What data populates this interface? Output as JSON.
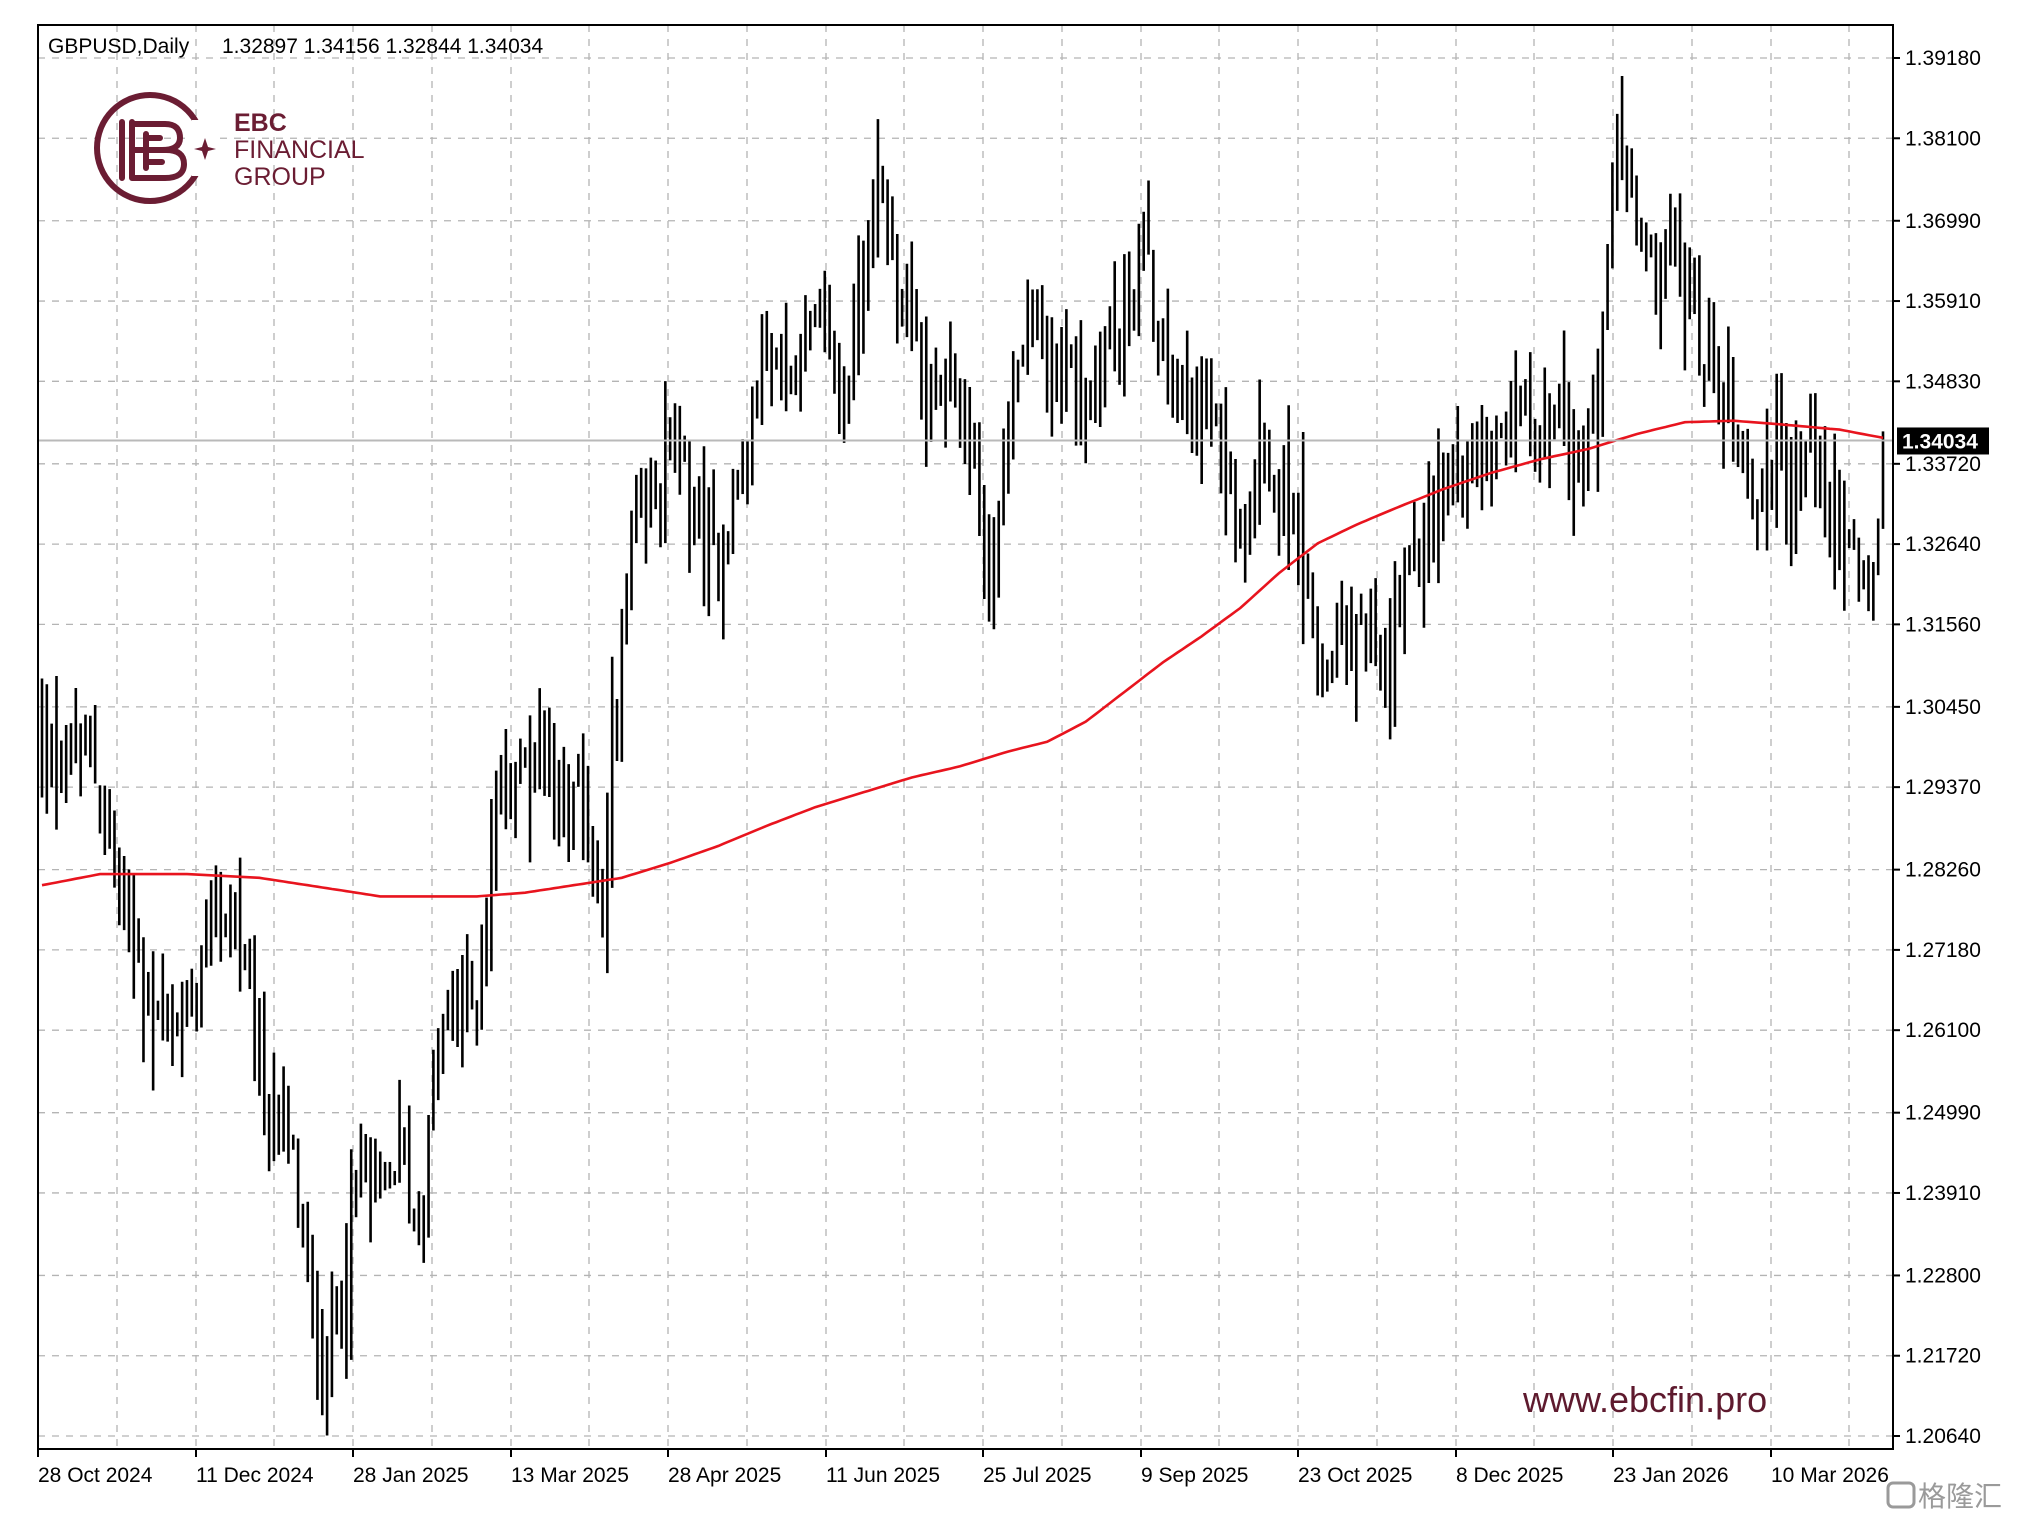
{
  "header": {
    "symbol": "GBPUSD,Daily",
    "ohlc": "1.32897 1.34156 1.32844 1.34034"
  },
  "branding": {
    "logo_line1": "EBC",
    "logo_line2": "FINANCIAL",
    "logo_line3": "GROUP",
    "website": "www.ebcfin.pro",
    "watermark": "格隆汇"
  },
  "colors": {
    "bars": "#000000",
    "moving_average": "#e8141e",
    "price_line": "#b9b9b9",
    "price_tag_bg": "#000000",
    "price_tag_text": "#ffffff",
    "grid": "#b4b4b4",
    "logo": "#6b1d33"
  },
  "chart_data": {
    "type": "ohlc-bar",
    "grid": true,
    "y_ticks": [
      "1.39180",
      "1.38100",
      "1.36990",
      "1.35910",
      "1.34830",
      "1.33720",
      "1.32640",
      "1.31560",
      "1.30450",
      "1.29370",
      "1.28260",
      "1.27180",
      "1.26100",
      "1.24990",
      "1.23910",
      "1.22800",
      "1.21720",
      "1.20640"
    ],
    "ylim": [
      1.2064,
      1.3918
    ],
    "x_ticks": [
      "28 Oct 2024",
      "11 Dec 2024",
      "28 Jan 2025",
      "13 Mar 2025",
      "28 Apr 2025",
      "11 Jun 2025",
      "25 Jul 2025",
      "9 Sep 2025",
      "23 Oct 2025",
      "8 Dec 2025",
      "23 Jan 2026",
      "10 Mar 2026"
    ],
    "current_price": "1.34034",
    "last_bar": {
      "open": 1.32897,
      "high": 1.34156,
      "low": 1.32844,
      "close": 1.34034
    },
    "close_path": [
      {
        "bar": 0,
        "close": 1.2985
      },
      {
        "bar": 10,
        "close": 1.2985
      },
      {
        "bar": 15,
        "close": 1.282
      },
      {
        "bar": 22,
        "close": 1.265
      },
      {
        "bar": 30,
        "close": 1.262
      },
      {
        "bar": 36,
        "close": 1.277
      },
      {
        "bar": 40,
        "close": 1.276
      },
      {
        "bar": 46,
        "close": 1.253
      },
      {
        "bar": 52,
        "close": 1.244
      },
      {
        "bar": 56,
        "close": 1.22
      },
      {
        "bar": 58,
        "close": 1.215
      },
      {
        "bar": 62,
        "close": 1.225
      },
      {
        "bar": 66,
        "close": 1.242
      },
      {
        "bar": 70,
        "close": 1.238
      },
      {
        "bar": 74,
        "close": 1.245
      },
      {
        "bar": 78,
        "close": 1.234
      },
      {
        "bar": 82,
        "close": 1.259
      },
      {
        "bar": 86,
        "close": 1.264
      },
      {
        "bar": 90,
        "close": 1.265
      },
      {
        "bar": 94,
        "close": 1.293
      },
      {
        "bar": 100,
        "close": 1.296
      },
      {
        "bar": 104,
        "close": 1.299
      },
      {
        "bar": 108,
        "close": 1.292
      },
      {
        "bar": 112,
        "close": 1.294
      },
      {
        "bar": 116,
        "close": 1.275
      },
      {
        "bar": 118,
        "close": 1.3
      },
      {
        "bar": 122,
        "close": 1.326
      },
      {
        "bar": 126,
        "close": 1.333
      },
      {
        "bar": 130,
        "close": 1.339
      },
      {
        "bar": 134,
        "close": 1.333
      },
      {
        "bar": 138,
        "close": 1.323
      },
      {
        "bar": 142,
        "close": 1.33
      },
      {
        "bar": 146,
        "close": 1.34
      },
      {
        "bar": 150,
        "close": 1.354
      },
      {
        "bar": 154,
        "close": 1.349
      },
      {
        "bar": 158,
        "close": 1.355
      },
      {
        "bar": 162,
        "close": 1.356
      },
      {
        "bar": 166,
        "close": 1.345
      },
      {
        "bar": 170,
        "close": 1.364
      },
      {
        "bar": 173,
        "close": 1.375
      },
      {
        "bar": 176,
        "close": 1.366
      },
      {
        "bar": 180,
        "close": 1.355
      },
      {
        "bar": 184,
        "close": 1.345
      },
      {
        "bar": 188,
        "close": 1.348
      },
      {
        "bar": 192,
        "close": 1.34
      },
      {
        "bar": 196,
        "close": 1.32
      },
      {
        "bar": 200,
        "close": 1.342
      },
      {
        "bar": 204,
        "close": 1.356
      },
      {
        "bar": 208,
        "close": 1.349
      },
      {
        "bar": 212,
        "close": 1.35
      },
      {
        "bar": 216,
        "close": 1.345
      },
      {
        "bar": 220,
        "close": 1.354
      },
      {
        "bar": 224,
        "close": 1.355
      },
      {
        "bar": 228,
        "close": 1.367
      },
      {
        "bar": 232,
        "close": 1.35
      },
      {
        "bar": 236,
        "close": 1.344
      },
      {
        "bar": 240,
        "close": 1.348
      },
      {
        "bar": 244,
        "close": 1.338
      },
      {
        "bar": 248,
        "close": 1.331
      },
      {
        "bar": 252,
        "close": 1.341
      },
      {
        "bar": 256,
        "close": 1.335
      },
      {
        "bar": 260,
        "close": 1.327
      },
      {
        "bar": 263,
        "close": 1.314
      },
      {
        "bar": 266,
        "close": 1.31
      },
      {
        "bar": 270,
        "close": 1.316
      },
      {
        "bar": 274,
        "close": 1.315
      },
      {
        "bar": 278,
        "close": 1.307
      },
      {
        "bar": 282,
        "close": 1.322
      },
      {
        "bar": 286,
        "close": 1.326
      },
      {
        "bar": 290,
        "close": 1.334
      },
      {
        "bar": 294,
        "close": 1.335
      },
      {
        "bar": 298,
        "close": 1.338
      },
      {
        "bar": 302,
        "close": 1.344
      },
      {
        "bar": 306,
        "close": 1.347
      },
      {
        "bar": 310,
        "close": 1.342
      },
      {
        "bar": 314,
        "close": 1.344
      },
      {
        "bar": 318,
        "close": 1.339
      },
      {
        "bar": 322,
        "close": 1.343
      },
      {
        "bar": 324,
        "close": 1.361
      },
      {
        "bar": 326,
        "close": 1.382
      },
      {
        "bar": 330,
        "close": 1.368
      },
      {
        "bar": 334,
        "close": 1.362
      },
      {
        "bar": 338,
        "close": 1.367
      },
      {
        "bar": 342,
        "close": 1.356
      },
      {
        "bar": 346,
        "close": 1.348
      },
      {
        "bar": 350,
        "close": 1.343
      },
      {
        "bar": 354,
        "close": 1.332
      },
      {
        "bar": 358,
        "close": 1.338
      },
      {
        "bar": 362,
        "close": 1.333
      },
      {
        "bar": 366,
        "close": 1.34
      },
      {
        "bar": 370,
        "close": 1.33
      },
      {
        "bar": 374,
        "close": 1.324
      },
      {
        "bar": 378,
        "close": 1.32
      },
      {
        "bar": 380,
        "close": 1.329
      },
      {
        "bar": 381,
        "close": 1.3403
      }
    ],
    "moving_average": [
      {
        "bar": 0,
        "value": 1.2805
      },
      {
        "bar": 12,
        "value": 1.282
      },
      {
        "bar": 30,
        "value": 1.282
      },
      {
        "bar": 45,
        "value": 1.2815
      },
      {
        "bar": 60,
        "value": 1.28
      },
      {
        "bar": 70,
        "value": 1.279
      },
      {
        "bar": 90,
        "value": 1.279
      },
      {
        "bar": 100,
        "value": 1.2795
      },
      {
        "bar": 110,
        "value": 1.2805
      },
      {
        "bar": 120,
        "value": 1.2815
      },
      {
        "bar": 130,
        "value": 1.2835
      },
      {
        "bar": 140,
        "value": 1.2858
      },
      {
        "bar": 150,
        "value": 1.2885
      },
      {
        "bar": 160,
        "value": 1.291
      },
      {
        "bar": 170,
        "value": 1.293
      },
      {
        "bar": 180,
        "value": 1.295
      },
      {
        "bar": 190,
        "value": 1.2965
      },
      {
        "bar": 200,
        "value": 1.2985
      },
      {
        "bar": 208,
        "value": 1.2998
      },
      {
        "bar": 216,
        "value": 1.3025
      },
      {
        "bar": 224,
        "value": 1.3065
      },
      {
        "bar": 232,
        "value": 1.3105
      },
      {
        "bar": 240,
        "value": 1.314
      },
      {
        "bar": 248,
        "value": 1.3178
      },
      {
        "bar": 256,
        "value": 1.3225
      },
      {
        "bar": 264,
        "value": 1.3265
      },
      {
        "bar": 272,
        "value": 1.329
      },
      {
        "bar": 280,
        "value": 1.3312
      },
      {
        "bar": 290,
        "value": 1.3338
      },
      {
        "bar": 300,
        "value": 1.336
      },
      {
        "bar": 310,
        "value": 1.3378
      },
      {
        "bar": 320,
        "value": 1.3392
      },
      {
        "bar": 330,
        "value": 1.3412
      },
      {
        "bar": 340,
        "value": 1.3428
      },
      {
        "bar": 350,
        "value": 1.343
      },
      {
        "bar": 360,
        "value": 1.3425
      },
      {
        "bar": 372,
        "value": 1.3418
      },
      {
        "bar": 381,
        "value": 1.3407
      }
    ],
    "total_bars": 382
  }
}
